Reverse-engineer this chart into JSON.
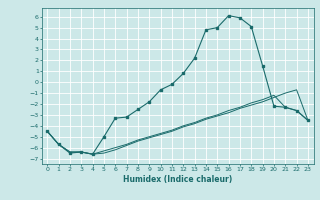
{
  "xlabel": "Humidex (Indice chaleur)",
  "bg_color": "#cce8e8",
  "grid_color": "#ffffff",
  "line_color": "#1a6b6b",
  "xlim": [
    -0.5,
    23.5
  ],
  "ylim": [
    -7.5,
    6.8
  ],
  "xticks": [
    0,
    1,
    2,
    3,
    4,
    5,
    6,
    7,
    8,
    9,
    10,
    11,
    12,
    13,
    14,
    15,
    16,
    17,
    18,
    19,
    20,
    21,
    22,
    23
  ],
  "yticks": [
    -7,
    -6,
    -5,
    -4,
    -3,
    -2,
    -1,
    0,
    1,
    2,
    3,
    4,
    5,
    6
  ],
  "curve1_x": [
    0,
    1,
    2,
    3,
    4,
    5,
    6,
    7,
    8,
    9,
    10,
    11,
    12,
    13,
    14,
    15,
    16,
    17,
    18,
    19,
    20,
    21,
    22,
    23
  ],
  "curve1_y": [
    -4.5,
    -5.7,
    -6.5,
    -6.4,
    -6.6,
    -5.0,
    -3.3,
    -3.2,
    -2.5,
    -1.8,
    -0.7,
    -0.2,
    0.8,
    2.2,
    4.8,
    5.0,
    6.1,
    5.9,
    5.1,
    1.5,
    -2.2,
    -2.3,
    -2.6,
    -3.5
  ],
  "curve2_x": [
    0,
    1,
    2,
    3,
    4,
    5,
    6,
    7,
    8,
    9,
    10,
    11,
    12,
    13,
    14,
    15,
    16,
    17,
    18,
    19,
    20,
    21,
    22,
    23
  ],
  "curve2_y": [
    -4.5,
    -5.7,
    -6.4,
    -6.4,
    -6.6,
    -6.3,
    -6.0,
    -5.7,
    -5.3,
    -5.0,
    -4.7,
    -4.4,
    -4.0,
    -3.7,
    -3.3,
    -3.0,
    -2.6,
    -2.3,
    -1.9,
    -1.6,
    -1.2,
    -2.3,
    -2.6,
    -3.5
  ],
  "curve3_x": [
    0,
    1,
    2,
    3,
    4,
    5,
    6,
    7,
    8,
    9,
    10,
    11,
    12,
    13,
    14,
    15,
    16,
    17,
    18,
    19,
    20,
    21,
    22,
    23
  ],
  "curve3_y": [
    -4.5,
    -5.7,
    -6.4,
    -6.4,
    -6.6,
    -6.5,
    -6.2,
    -5.8,
    -5.4,
    -5.1,
    -4.8,
    -4.5,
    -4.1,
    -3.8,
    -3.4,
    -3.1,
    -2.8,
    -2.4,
    -2.1,
    -1.8,
    -1.4,
    -1.0,
    -0.7,
    -3.5
  ]
}
